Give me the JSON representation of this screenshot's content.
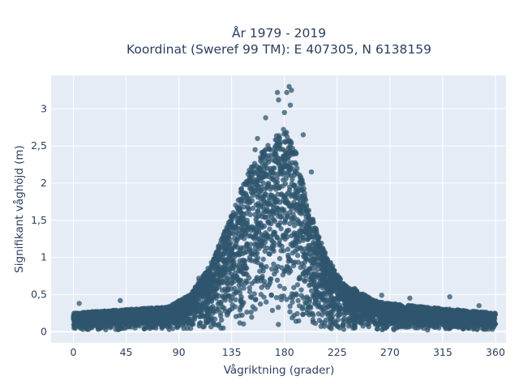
{
  "chart_data": {
    "type": "scatter",
    "title": [
      "År 1979 - 2019",
      "Koordinat (Sweref 99 TM): E 407305, N 6138159"
    ],
    "xlabel": "Vågriktning (grader)",
    "ylabel": "Signifikant våghöjd (m)",
    "xlim": [
      -19,
      369
    ],
    "ylim": [
      -0.15,
      3.45
    ],
    "x_ticks": [
      0,
      45,
      90,
      135,
      180,
      225,
      270,
      315,
      360
    ],
    "y_ticks": [
      {
        "value": 0,
        "label": "0"
      },
      {
        "value": 0.5,
        "label": "0,5"
      },
      {
        "value": 1,
        "label": "1"
      },
      {
        "value": 1.5,
        "label": "1,5"
      },
      {
        "value": 2,
        "label": "2"
      },
      {
        "value": 2.5,
        "label": "2,5"
      },
      {
        "value": 3,
        "label": "3"
      }
    ],
    "grid": true,
    "marker_color": "#2f566e",
    "background_color": "#e5ecf6",
    "envelope": [
      {
        "x": 0,
        "y": 0.25
      },
      {
        "x": 45,
        "y": 0.3
      },
      {
        "x": 80,
        "y": 0.33
      },
      {
        "x": 100,
        "y": 0.5
      },
      {
        "x": 120,
        "y": 1.0
      },
      {
        "x": 135,
        "y": 1.6
      },
      {
        "x": 150,
        "y": 2.2
      },
      {
        "x": 165,
        "y": 2.5
      },
      {
        "x": 180,
        "y": 2.75
      },
      {
        "x": 190,
        "y": 2.4
      },
      {
        "x": 200,
        "y": 1.7
      },
      {
        "x": 215,
        "y": 1.05
      },
      {
        "x": 230,
        "y": 0.65
      },
      {
        "x": 260,
        "y": 0.4
      },
      {
        "x": 300,
        "y": 0.33
      },
      {
        "x": 360,
        "y": 0.25
      }
    ],
    "outliers": [
      {
        "x": 184,
        "y": 3.3
      },
      {
        "x": 186,
        "y": 3.25
      },
      {
        "x": 182,
        "y": 3.22
      },
      {
        "x": 174,
        "y": 3.22
      },
      {
        "x": 175,
        "y": 3.12
      },
      {
        "x": 185,
        "y": 3.05
      },
      {
        "x": 180,
        "y": 2.95
      },
      {
        "x": 157,
        "y": 2.6
      },
      {
        "x": 155,
        "y": 2.45
      },
      {
        "x": 164,
        "y": 2.88
      },
      {
        "x": 196,
        "y": 2.65
      },
      {
        "x": 203,
        "y": 2.15
      },
      {
        "x": 96,
        "y": 0.45
      },
      {
        "x": 107,
        "y": 0.72
      },
      {
        "x": 263,
        "y": 0.49
      },
      {
        "x": 287,
        "y": 0.45
      },
      {
        "x": 321,
        "y": 0.47
      },
      {
        "x": 346,
        "y": 0.35
      },
      {
        "x": 5,
        "y": 0.38
      },
      {
        "x": 40,
        "y": 0.42
      },
      {
        "x": 232,
        "y": 0.62
      },
      {
        "x": 240,
        "y": 0.58
      }
    ]
  }
}
